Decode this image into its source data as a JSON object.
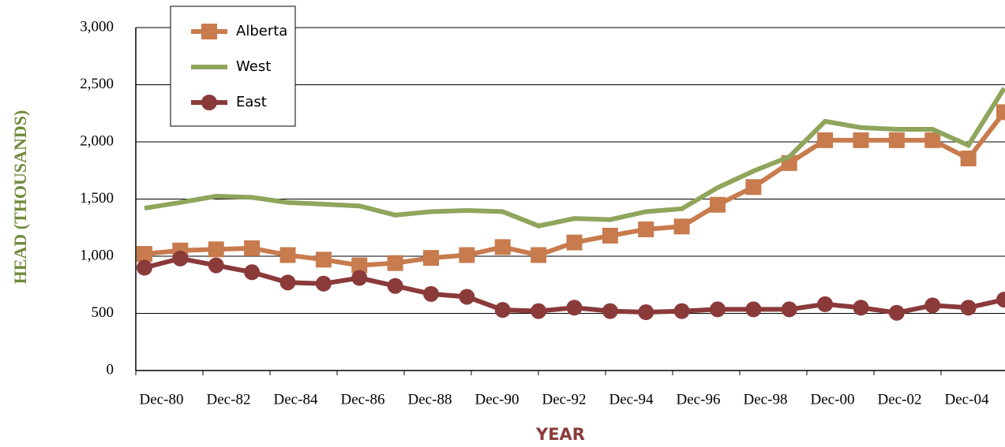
{
  "chart_data": {
    "type": "line",
    "x_label": "YEAR",
    "y_label": "HEAD (THOUSANDS)",
    "categories": [
      "Dec-80",
      null,
      "Dec-82",
      null,
      "Dec-84",
      null,
      "Dec-86",
      null,
      "Dec-88",
      null,
      "Dec-90",
      null,
      "Dec-92",
      null,
      "Dec-94",
      null,
      "Dec-96",
      null,
      "Dec-98",
      null,
      "Dec-00",
      null,
      "Dec-02",
      null,
      "Dec-04"
    ],
    "series": [
      {
        "name": "Alberta",
        "color": "#c87b4d",
        "marker": "square",
        "values": [
          1020,
          1050,
          1060,
          1070,
          1010,
          970,
          920,
          940,
          985,
          1010,
          1080,
          1010,
          1120,
          1180,
          1235,
          1260,
          1450,
          1605,
          1815,
          2015,
          2015,
          2015,
          2015,
          1855,
          2260
        ]
      },
      {
        "name": "West",
        "color": "#8fa55c",
        "marker": "none",
        "values": [
          1420,
          1470,
          1525,
          1515,
          1470,
          1455,
          1440,
          1360,
          1390,
          1400,
          1390,
          1265,
          1330,
          1320,
          1390,
          1415,
          1600,
          1745,
          1870,
          2180,
          2125,
          2110,
          2110,
          1970,
          2470
        ]
      },
      {
        "name": "East",
        "color": "#8b3a3a",
        "marker": "circle",
        "values": [
          900,
          980,
          920,
          860,
          770,
          760,
          810,
          740,
          670,
          645,
          530,
          520,
          550,
          520,
          510,
          520,
          535,
          535,
          535,
          580,
          550,
          505,
          570,
          550,
          620
        ]
      }
    ],
    "ylim": [
      0,
      3000
    ],
    "yticks": [
      0,
      {
        "value": 500,
        "label": "500"
      },
      {
        "value": 1000,
        "label": "1,000"
      },
      {
        "value": 1500,
        "label": "1,500"
      },
      {
        "value": 2000,
        "label": "2,000"
      },
      {
        "value": 2500,
        "label": "2,500"
      },
      {
        "value": 3000,
        "label": "3,000"
      }
    ],
    "grid": true
  }
}
